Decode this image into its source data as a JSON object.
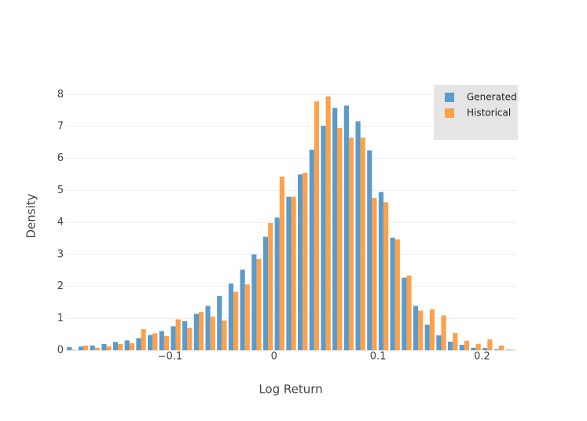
{
  "chart_data": {
    "type": "histogram",
    "x_label": "Log Return",
    "y_label": "Density",
    "bins": [
      -0.2,
      -0.1889,
      -0.1778,
      -0.1667,
      -0.1556,
      -0.1445,
      -0.1334,
      -0.1223,
      -0.1112,
      -0.1001,
      -0.089,
      -0.0779,
      -0.0668,
      -0.0557,
      -0.0446,
      -0.0335,
      -0.0224,
      -0.0113,
      -0.0002,
      0.0109,
      0.022,
      0.0331,
      0.0442,
      0.0553,
      0.0664,
      0.0775,
      0.0886,
      0.0997,
      0.1108,
      0.1219,
      0.133,
      0.1441,
      0.1552,
      0.1663,
      0.1774,
      0.1885,
      0.1996,
      0.2107,
      0.2218,
      0.2329
    ],
    "series": [
      {
        "name": "Generated",
        "color": "#5a9bcb",
        "values": [
          0.1,
          0.12,
          0.15,
          0.2,
          0.26,
          0.31,
          0.38,
          0.48,
          0.6,
          0.75,
          0.91,
          1.14,
          1.39,
          1.7,
          2.09,
          2.52,
          3.0,
          3.55,
          4.15,
          4.8,
          5.5,
          6.27,
          7.02,
          7.58,
          7.65,
          7.16,
          6.25,
          4.95,
          3.52,
          2.27,
          1.39,
          0.8,
          0.47,
          0.27,
          0.17,
          0.08,
          0.07,
          0.03,
          0.02
        ]
      },
      {
        "name": "Historical",
        "color": "#fda14b",
        "values": [
          0.02,
          0.15,
          0.08,
          0.12,
          0.2,
          0.22,
          0.66,
          0.53,
          0.45,
          0.97,
          0.7,
          1.2,
          1.05,
          0.93,
          1.83,
          2.06,
          2.85,
          3.98,
          5.43,
          4.8,
          5.55,
          7.78,
          7.94,
          6.95,
          6.65,
          6.65,
          4.76,
          4.63,
          3.47,
          2.34,
          1.24,
          1.28,
          1.09,
          0.54,
          0.3,
          0.2,
          0.34,
          0.15,
          0.02
        ]
      }
    ],
    "xlim": [
      -0.2,
      0.2329
    ],
    "xticks": [
      {
        "value": -0.1,
        "label": "−0.1"
      },
      0,
      0.1,
      0.2
    ],
    "ylim": [
      0,
      8.35
    ],
    "yticks": [
      0,
      1,
      2,
      3,
      4,
      5,
      6,
      7,
      8
    ],
    "grid": true,
    "legend": "top-right"
  }
}
